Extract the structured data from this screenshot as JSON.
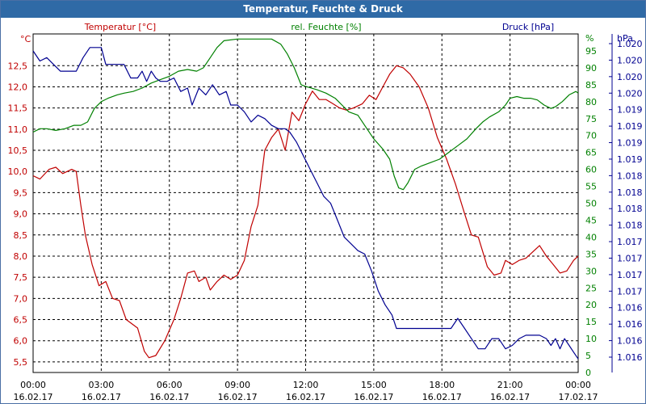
{
  "title": "Temperatur, Feuchte & Druck",
  "colors": {
    "temp": "#c00000",
    "humid": "#008000",
    "press": "#000090",
    "title_bg": "#2f6aa6"
  },
  "chart_data": {
    "type": "line",
    "title": "Temperatur, Feuchte & Druck",
    "grid": true,
    "x_ticks": [
      {
        "time": "00:00",
        "date": "16.02.17"
      },
      {
        "time": "03:00",
        "date": "16.02.17"
      },
      {
        "time": "06:00",
        "date": "16.02.17"
      },
      {
        "time": "09:00",
        "date": "16.02.17"
      },
      {
        "time": "12:00",
        "date": "16.02.17"
      },
      {
        "time": "15:00",
        "date": "16.02.17"
      },
      {
        "time": "18:00",
        "date": "16.02.17"
      },
      {
        "time": "21:00",
        "date": "16.02.17"
      },
      {
        "time": "00:00",
        "date": "17.02.17"
      }
    ],
    "axes": {
      "temp": {
        "unit": "°C",
        "legend": "Temperatur [°C]",
        "range": [
          5.25,
          13.25
        ],
        "ticks": [
          "5,5",
          "6,0",
          "6,5",
          "7,0",
          "7,5",
          "8,0",
          "8,5",
          "9,0",
          "9,5",
          "10,0",
          "10,5",
          "11,0",
          "11,5",
          "12,0",
          "12,5"
        ]
      },
      "humid": {
        "unit": "%",
        "legend": "rel. Feuchte [%]",
        "range": [
          0,
          100
        ],
        "ticks": [
          "0",
          "5",
          "10",
          "15",
          "20",
          "25",
          "30",
          "35",
          "40",
          "45",
          "50",
          "55",
          "60",
          "65",
          "70",
          "75",
          "80",
          "85",
          "90",
          "95"
        ]
      },
      "press": {
        "unit": "hPa",
        "legend": "Druck [hPa]",
        "ticks": [
          "1.016",
          "1.016",
          "1.016",
          "1.016",
          "1.017",
          "1.017",
          "1.017",
          "1.017",
          "1.018",
          "1.018",
          "1.018",
          "1.018",
          "1.019",
          "1.019",
          "1.019",
          "1.019",
          "1.020",
          "1.020",
          "1.020",
          "1.020"
        ]
      }
    },
    "series": [
      {
        "name": "Temperatur [°C]",
        "axis": "temp",
        "points": [
          [
            0,
            9.9
          ],
          [
            0.3,
            9.82
          ],
          [
            0.7,
            10.05
          ],
          [
            1.0,
            10.1
          ],
          [
            1.3,
            9.95
          ],
          [
            1.7,
            10.05
          ],
          [
            1.9,
            10.0
          ],
          [
            2.1,
            9.2
          ],
          [
            2.3,
            8.5
          ],
          [
            2.6,
            7.8
          ],
          [
            2.9,
            7.3
          ],
          [
            3.2,
            7.4
          ],
          [
            3.5,
            7.0
          ],
          [
            3.8,
            6.95
          ],
          [
            4.1,
            6.5
          ],
          [
            4.6,
            6.3
          ],
          [
            4.9,
            5.75
          ],
          [
            5.1,
            5.6
          ],
          [
            5.4,
            5.65
          ],
          [
            5.8,
            6.0
          ],
          [
            6.2,
            6.5
          ],
          [
            6.5,
            7.0
          ],
          [
            6.8,
            7.6
          ],
          [
            7.1,
            7.65
          ],
          [
            7.3,
            7.4
          ],
          [
            7.6,
            7.5
          ],
          [
            7.8,
            7.2
          ],
          [
            8.1,
            7.4
          ],
          [
            8.4,
            7.55
          ],
          [
            8.7,
            7.45
          ],
          [
            9.0,
            7.55
          ],
          [
            9.3,
            7.9
          ],
          [
            9.6,
            8.7
          ],
          [
            9.9,
            9.2
          ],
          [
            10.2,
            10.5
          ],
          [
            10.5,
            10.8
          ],
          [
            10.8,
            11.0
          ],
          [
            11.1,
            10.5
          ],
          [
            11.4,
            11.4
          ],
          [
            11.7,
            11.2
          ],
          [
            12.0,
            11.6
          ],
          [
            12.3,
            11.9
          ],
          [
            12.6,
            11.7
          ],
          [
            12.9,
            11.7
          ],
          [
            13.2,
            11.6
          ],
          [
            13.5,
            11.5
          ],
          [
            13.8,
            11.45
          ],
          [
            14.1,
            11.5
          ],
          [
            14.5,
            11.6
          ],
          [
            14.8,
            11.8
          ],
          [
            15.1,
            11.7
          ],
          [
            15.4,
            12.0
          ],
          [
            15.7,
            12.3
          ],
          [
            16.0,
            12.5
          ],
          [
            16.3,
            12.45
          ],
          [
            16.6,
            12.3
          ],
          [
            17.0,
            12.0
          ],
          [
            17.4,
            11.5
          ],
          [
            17.8,
            10.8
          ],
          [
            18.2,
            10.3
          ],
          [
            18.6,
            9.7
          ],
          [
            19.0,
            9.0
          ],
          [
            19.3,
            8.5
          ],
          [
            19.6,
            8.45
          ],
          [
            20.0,
            7.75
          ],
          [
            20.3,
            7.55
          ],
          [
            20.6,
            7.6
          ],
          [
            20.8,
            7.9
          ],
          [
            21.1,
            7.8
          ],
          [
            21.4,
            7.9
          ],
          [
            21.7,
            7.95
          ],
          [
            22.0,
            8.1
          ],
          [
            22.3,
            8.25
          ],
          [
            22.6,
            8.0
          ],
          [
            22.9,
            7.8
          ],
          [
            23.2,
            7.6
          ],
          [
            23.5,
            7.65
          ],
          [
            23.8,
            7.9
          ],
          [
            24.0,
            8.0
          ]
        ]
      },
      {
        "name": "rel. Feuchte [%]",
        "axis": "humid",
        "points": [
          [
            0,
            71
          ],
          [
            0.3,
            72
          ],
          [
            0.6,
            72
          ],
          [
            1.0,
            71.5
          ],
          [
            1.4,
            72
          ],
          [
            1.8,
            73
          ],
          [
            2.1,
            73
          ],
          [
            2.4,
            74
          ],
          [
            2.7,
            78
          ],
          [
            3.0,
            80
          ],
          [
            3.3,
            81
          ],
          [
            3.7,
            82
          ],
          [
            4.0,
            82.5
          ],
          [
            4.4,
            83
          ],
          [
            4.8,
            84
          ],
          [
            5.2,
            85.5
          ],
          [
            5.6,
            86.5
          ],
          [
            6.0,
            87.5
          ],
          [
            6.4,
            89
          ],
          [
            6.8,
            89.5
          ],
          [
            7.2,
            89
          ],
          [
            7.5,
            90
          ],
          [
            7.8,
            93
          ],
          [
            8.1,
            96
          ],
          [
            8.4,
            98
          ],
          [
            9.0,
            98.5
          ],
          [
            9.5,
            98.5
          ],
          [
            10.0,
            98.5
          ],
          [
            10.5,
            98.5
          ],
          [
            10.9,
            97
          ],
          [
            11.2,
            94
          ],
          [
            11.5,
            90
          ],
          [
            11.8,
            85
          ],
          [
            12.0,
            84.5
          ],
          [
            12.5,
            83.5
          ],
          [
            12.9,
            82.5
          ],
          [
            13.3,
            81
          ],
          [
            13.6,
            79
          ],
          [
            13.9,
            77
          ],
          [
            14.3,
            76
          ],
          [
            14.7,
            72
          ],
          [
            15.0,
            69
          ],
          [
            15.4,
            66
          ],
          [
            15.7,
            63
          ],
          [
            15.9,
            58
          ],
          [
            16.1,
            54.5
          ],
          [
            16.3,
            54
          ],
          [
            16.5,
            56
          ],
          [
            16.8,
            60
          ],
          [
            17.1,
            61
          ],
          [
            17.5,
            62
          ],
          [
            17.9,
            63
          ],
          [
            18.3,
            65
          ],
          [
            18.7,
            67
          ],
          [
            19.1,
            69
          ],
          [
            19.5,
            72
          ],
          [
            19.8,
            74
          ],
          [
            20.1,
            75.5
          ],
          [
            20.5,
            77
          ],
          [
            20.8,
            79
          ],
          [
            21.0,
            81
          ],
          [
            21.3,
            81.5
          ],
          [
            21.6,
            81
          ],
          [
            21.9,
            81
          ],
          [
            22.2,
            80.5
          ],
          [
            22.5,
            79
          ],
          [
            22.8,
            78
          ],
          [
            23.0,
            78.5
          ],
          [
            23.3,
            80
          ],
          [
            23.6,
            82
          ],
          [
            23.9,
            83
          ],
          [
            24.0,
            82.5
          ]
        ]
      },
      {
        "name": "Druck [hPa]",
        "axis": "press",
        "points": [
          [
            0,
            95
          ],
          [
            0.3,
            92
          ],
          [
            0.6,
            93
          ],
          [
            0.9,
            91
          ],
          [
            1.2,
            89
          ],
          [
            1.6,
            89
          ],
          [
            1.9,
            89
          ],
          [
            2.2,
            93
          ],
          [
            2.5,
            96
          ],
          [
            2.8,
            96
          ],
          [
            3.0,
            96
          ],
          [
            3.2,
            91
          ],
          [
            3.6,
            91
          ],
          [
            4.0,
            91
          ],
          [
            4.3,
            87
          ],
          [
            4.6,
            87
          ],
          [
            4.8,
            89
          ],
          [
            5.0,
            86
          ],
          [
            5.2,
            89
          ],
          [
            5.4,
            87
          ],
          [
            5.6,
            86
          ],
          [
            5.9,
            86
          ],
          [
            6.2,
            87
          ],
          [
            6.5,
            83
          ],
          [
            6.8,
            84
          ],
          [
            7.0,
            79
          ],
          [
            7.3,
            84
          ],
          [
            7.6,
            82
          ],
          [
            7.9,
            85
          ],
          [
            8.2,
            82
          ],
          [
            8.5,
            83
          ],
          [
            8.7,
            79
          ],
          [
            9.0,
            79
          ],
          [
            9.3,
            77
          ],
          [
            9.6,
            74
          ],
          [
            9.9,
            76
          ],
          [
            10.2,
            75
          ],
          [
            10.5,
            73
          ],
          [
            10.8,
            72
          ],
          [
            11.1,
            72
          ],
          [
            11.3,
            71
          ],
          [
            11.6,
            68
          ],
          [
            11.9,
            64
          ],
          [
            12.2,
            60
          ],
          [
            12.5,
            56
          ],
          [
            12.8,
            52
          ],
          [
            13.1,
            50
          ],
          [
            13.4,
            45
          ],
          [
            13.7,
            40
          ],
          [
            14.0,
            38
          ],
          [
            14.3,
            36
          ],
          [
            14.6,
            35
          ],
          [
            14.9,
            30
          ],
          [
            15.2,
            24
          ],
          [
            15.5,
            20
          ],
          [
            15.8,
            17
          ],
          [
            16.0,
            13
          ],
          [
            16.4,
            13
          ],
          [
            16.8,
            13
          ],
          [
            17.2,
            13
          ],
          [
            17.6,
            13
          ],
          [
            18.0,
            13
          ],
          [
            18.4,
            13
          ],
          [
            18.7,
            16
          ],
          [
            19.0,
            13
          ],
          [
            19.3,
            10
          ],
          [
            19.6,
            7
          ],
          [
            19.9,
            7
          ],
          [
            20.2,
            10
          ],
          [
            20.5,
            10
          ],
          [
            20.8,
            7
          ],
          [
            21.1,
            8
          ],
          [
            21.4,
            10
          ],
          [
            21.7,
            11
          ],
          [
            22.0,
            11
          ],
          [
            22.3,
            11
          ],
          [
            22.6,
            10
          ],
          [
            22.8,
            8
          ],
          [
            23.0,
            10
          ],
          [
            23.2,
            7
          ],
          [
            23.4,
            10
          ],
          [
            23.6,
            8
          ],
          [
            23.8,
            6
          ],
          [
            24.0,
            4
          ]
        ]
      }
    ]
  }
}
